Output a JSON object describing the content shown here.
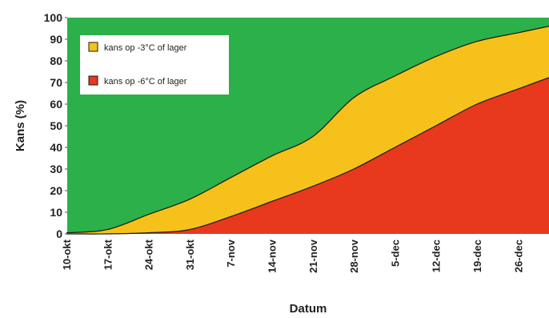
{
  "chart_data": {
    "type": "area",
    "title": "",
    "ylabel": "Kans (%)",
    "xlabel": "Datum",
    "ylim": [
      0,
      100
    ],
    "yticks": [
      0,
      10,
      20,
      30,
      40,
      50,
      60,
      70,
      80,
      90,
      100
    ],
    "categories": [
      "10-okt",
      "17-okt",
      "24-okt",
      "31-okt",
      "7-nov",
      "14-nov",
      "21-nov",
      "28-nov",
      "5-dec",
      "12-dec",
      "19-dec",
      "26-dec"
    ],
    "legend_position": "top-left",
    "series": [
      {
        "name": "kans op -3°C of lager",
        "color": "#f6c11a",
        "values": [
          0.5,
          2,
          9,
          16,
          26,
          36,
          45,
          63,
          73,
          82,
          89,
          93
        ]
      },
      {
        "name": "kans op -6°C of lager",
        "color": "#e8381e",
        "values": [
          0,
          0,
          0.5,
          2,
          8,
          15,
          22,
          30,
          40,
          50,
          60,
          67
        ]
      }
    ],
    "colors": {
      "background_above": "#2bb04a",
      "line": "#1a1a1a"
    }
  }
}
